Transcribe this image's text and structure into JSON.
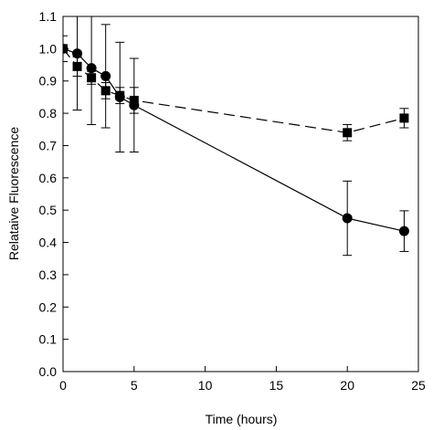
{
  "chart_data": {
    "type": "scatter",
    "title": "",
    "xlabel": "Time (hours)",
    "ylabel": "Relataive Fluorescence",
    "xlim": [
      0,
      25
    ],
    "ylim": [
      0,
      1.1
    ],
    "x_ticks": [
      0,
      5,
      10,
      15,
      20,
      25
    ],
    "y_ticks": [
      0.0,
      0.1,
      0.2,
      0.3,
      0.4,
      0.5,
      0.6,
      0.7,
      0.8,
      0.9,
      1.0,
      1.1
    ],
    "x_tick_labels": [
      "0",
      "5",
      "10",
      "15",
      "20",
      "25"
    ],
    "y_tick_labels": [
      "0.0",
      "0.1",
      "0.2",
      "0.3",
      "0.4",
      "0.5",
      "0.6",
      "0.7",
      "0.8",
      "0.9",
      "1.0",
      "1.1"
    ],
    "grid": false,
    "legend": false,
    "series": [
      {
        "marker": "circle",
        "line_style": "solid",
        "points": [
          {
            "x": 0,
            "y": 1.0,
            "err": 0.0
          },
          {
            "x": 1,
            "y": 0.985,
            "err": 0.175
          },
          {
            "x": 2,
            "y": 0.94,
            "err": 0.175
          },
          {
            "x": 3,
            "y": 0.915,
            "err": 0.16
          },
          {
            "x": 4,
            "y": 0.85,
            "err": 0.17
          },
          {
            "x": 5,
            "y": 0.825,
            "err": 0.145
          },
          {
            "x": 20,
            "y": 0.475,
            "err": 0.115
          },
          {
            "x": 24,
            "y": 0.435,
            "err": 0.063
          }
        ]
      },
      {
        "marker": "square",
        "line_style": "dashed",
        "points": [
          {
            "x": 0,
            "y": 1.0,
            "err": 0.04
          },
          {
            "x": 1,
            "y": 0.945,
            "err": 0.03
          },
          {
            "x": 2,
            "y": 0.91,
            "err": 0.02
          },
          {
            "x": 3,
            "y": 0.87,
            "err": 0.025
          },
          {
            "x": 4,
            "y": 0.855,
            "err": 0.025
          },
          {
            "x": 5,
            "y": 0.84,
            "err": 0.04
          },
          {
            "x": 20,
            "y": 0.74,
            "err": 0.025
          },
          {
            "x": 24,
            "y": 0.785,
            "err": 0.03
          }
        ]
      }
    ]
  }
}
